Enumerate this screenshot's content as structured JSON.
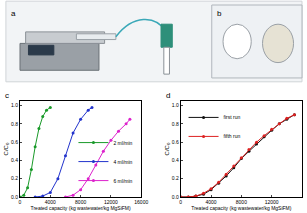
{
  "photos": [
    {
      "label": "a"
    },
    {
      "label": "b"
    }
  ],
  "chart_data": [
    {
      "type": "line",
      "panel": "c",
      "x_label": "Treated capacity (kg wastewater/kg MgSiFM)",
      "y_label": "C/C₀",
      "xlim": [
        0,
        16000
      ],
      "xticks": [
        0,
        4000,
        8000,
        12000,
        16000
      ],
      "ylim": [
        0,
        1.05
      ],
      "yticks": [
        {
          "value": 0,
          "label": "0.0"
        },
        {
          "value": 0.2,
          "label": "0.2"
        },
        {
          "value": 0.4,
          "label": "0.4"
        },
        {
          "value": 0.6,
          "label": "0.6"
        },
        {
          "value": 0.8,
          "label": "0.8"
        },
        {
          "value": 1,
          "label": "1.0"
        }
      ],
      "legend": "bottom right",
      "marker": "circle",
      "series": [
        {
          "name": "2 ml/min",
          "color": "#1a9a2a",
          "x": [
            0,
            500,
            1000,
            1500,
            2000,
            2500,
            3000,
            3500,
            4000
          ],
          "values": [
            0,
            0.02,
            0.1,
            0.3,
            0.55,
            0.75,
            0.88,
            0.95,
            0.98
          ]
        },
        {
          "name": "4 ml/min",
          "color": "#2233cc",
          "x": [
            2000,
            3000,
            4000,
            5000,
            6000,
            7000,
            8000,
            9000,
            9500
          ],
          "values": [
            0,
            0.01,
            0.05,
            0.2,
            0.45,
            0.7,
            0.85,
            0.95,
            0.98
          ]
        },
        {
          "name": "6 ml/min",
          "color": "#dd22cc",
          "x": [
            6000,
            7000,
            8000,
            9000,
            10000,
            11000,
            12000,
            13000,
            14000,
            14500
          ],
          "values": [
            0,
            0.02,
            0.08,
            0.2,
            0.35,
            0.5,
            0.62,
            0.72,
            0.8,
            0.85
          ]
        }
      ]
    },
    {
      "type": "line",
      "panel": "d",
      "x_label": "Treated capacity (kg wastewater/kg MgSiFM)",
      "y_label": "C/C₀",
      "xlim": [
        0,
        16000
      ],
      "xticks": [
        0,
        4000,
        8000,
        12000,
        16000
      ],
      "ylim": [
        0,
        1.05
      ],
      "yticks": [
        {
          "value": 0,
          "label": "0.0"
        },
        {
          "value": 0.2,
          "label": "0.2"
        },
        {
          "value": 0.4,
          "label": "0.4"
        },
        {
          "value": 0.6,
          "label": "0.6"
        },
        {
          "value": 0.8,
          "label": "0.8"
        },
        {
          "value": 1,
          "label": "1.0"
        }
      ],
      "legend": "top left",
      "marker": "circle",
      "series": [
        {
          "name": "first run",
          "color": "#111111",
          "x": [
            0,
            1000,
            2000,
            3000,
            4000,
            5000,
            6000,
            7000,
            8000,
            9000,
            10000,
            11000,
            12000,
            13000,
            14000,
            15000
          ],
          "values": [
            0,
            0,
            0.01,
            0.03,
            0.08,
            0.15,
            0.23,
            0.32,
            0.42,
            0.5,
            0.58,
            0.66,
            0.73,
            0.8,
            0.85,
            0.9
          ]
        },
        {
          "name": "fifth run",
          "color": "#dd2222",
          "x": [
            0,
            1000,
            2000,
            3000,
            4000,
            5000,
            6000,
            7000,
            8000,
            9000,
            10000,
            11000,
            12000,
            13000,
            14000,
            15000
          ],
          "values": [
            0,
            0,
            0.01,
            0.04,
            0.09,
            0.16,
            0.25,
            0.34,
            0.43,
            0.52,
            0.6,
            0.67,
            0.74,
            0.8,
            0.86,
            0.9
          ]
        }
      ]
    }
  ]
}
